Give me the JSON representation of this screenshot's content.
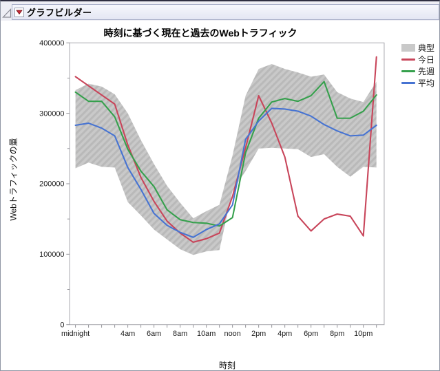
{
  "header": {
    "title": "グラフビルダー"
  },
  "chart_data": {
    "type": "line",
    "title": "時刻に基づく現在と過去のWebトラフィック",
    "xlabel": "時刻",
    "ylabel": "Webトラフィックの量",
    "ylim": [
      0,
      400000
    ],
    "y_major_ticks": [
      0,
      100000,
      200000,
      300000,
      400000
    ],
    "y_minor_step": 50000,
    "x_hours": [
      0,
      1,
      2,
      3,
      4,
      5,
      6,
      7,
      8,
      9,
      10,
      11,
      12,
      13,
      14,
      15,
      16,
      17,
      18,
      19,
      20,
      21,
      22,
      23
    ],
    "x_tick_labels": [
      {
        "h": 0,
        "label": "midnight"
      },
      {
        "h": 4,
        "label": "4am"
      },
      {
        "h": 6,
        "label": "6am"
      },
      {
        "h": 8,
        "label": "8am"
      },
      {
        "h": 10,
        "label": "10am"
      },
      {
        "h": 12,
        "label": "noon"
      },
      {
        "h": 14,
        "label": "2pm"
      },
      {
        "h": 16,
        "label": "4pm"
      },
      {
        "h": 18,
        "label": "6pm"
      },
      {
        "h": 20,
        "label": "8pm"
      },
      {
        "h": 22,
        "label": "10pm"
      }
    ],
    "grid": false,
    "legend_position": "right-top",
    "band": {
      "name": "典型",
      "color": "#c9c9c9",
      "stripe_color": "#b9b9b9",
      "lower": [
        222000,
        230000,
        224000,
        223000,
        174000,
        155000,
        135000,
        121000,
        107000,
        99000,
        104000,
        106000,
        190000,
        218000,
        250000,
        251000,
        250000,
        249000,
        238000,
        242000,
        224000,
        210000,
        224000,
        223000
      ],
      "upper": [
        333000,
        342000,
        338000,
        327000,
        300000,
        262000,
        228000,
        197000,
        173000,
        151000,
        161000,
        170000,
        240000,
        325000,
        363000,
        370000,
        363000,
        358000,
        352000,
        355000,
        330000,
        321000,
        316000,
        345000
      ]
    },
    "series": [
      {
        "name": "今日",
        "color": "#c8455a",
        "values": [
          352000,
          339000,
          326000,
          313000,
          255000,
          209000,
          175000,
          147000,
          130000,
          117000,
          122000,
          130000,
          182000,
          251000,
          325000,
          286000,
          238000,
          154000,
          133000,
          150000,
          157000,
          154000,
          126000,
          380000
        ]
      },
      {
        "name": "先週",
        "color": "#35a04c",
        "values": [
          330000,
          317000,
          317000,
          295000,
          249000,
          218000,
          196000,
          163000,
          149000,
          145000,
          144000,
          140000,
          152000,
          244000,
          293000,
          316000,
          321000,
          317000,
          325000,
          345000,
          293000,
          293000,
          303000,
          326000
        ]
      },
      {
        "name": "平均",
        "color": "#4673d2",
        "values": [
          283000,
          286000,
          279000,
          268000,
          223000,
          192000,
          158000,
          141000,
          131000,
          124000,
          135000,
          143000,
          170000,
          263000,
          289000,
          307000,
          306000,
          303000,
          296000,
          284000,
          275000,
          268000,
          269000,
          283000
        ]
      }
    ]
  }
}
